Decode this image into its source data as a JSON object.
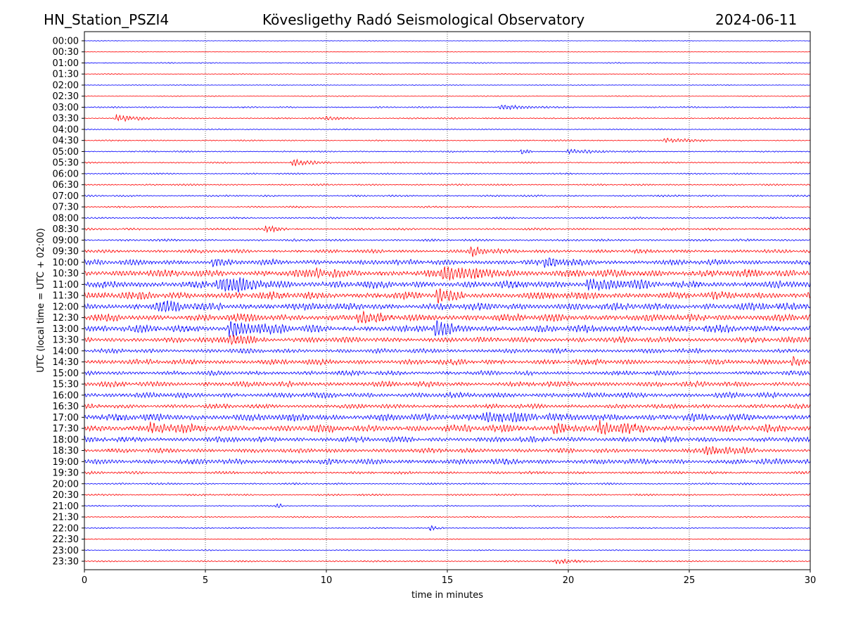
{
  "chart_data": {
    "type": "line",
    "title_left": "HN_Station_PSZI4",
    "title": "Kövesligethy Radó Seismological Observatory",
    "title_right": "2024-06-11",
    "xlabel": "time in minutes",
    "ylabel": "UTC (local time = UTC + 02:00)",
    "xlim": [
      0,
      30
    ],
    "xticks": [
      "0",
      "5",
      "10",
      "15",
      "20",
      "25",
      "30"
    ],
    "grid": "vertical dotted",
    "colors": [
      "#0000ff",
      "#ff0000"
    ],
    "rows": [
      "00:00",
      "00:30",
      "01:00",
      "01:30",
      "02:00",
      "02:30",
      "03:00",
      "03:30",
      "04:00",
      "04:30",
      "05:00",
      "05:30",
      "06:00",
      "06:30",
      "07:00",
      "07:30",
      "08:00",
      "08:30",
      "09:00",
      "09:30",
      "10:00",
      "10:30",
      "11:00",
      "11:30",
      "12:00",
      "12:30",
      "13:00",
      "13:30",
      "14:00",
      "14:30",
      "15:00",
      "15:30",
      "16:00",
      "16:30",
      "17:00",
      "17:30",
      "18:00",
      "18:30",
      "19:00",
      "19:30",
      "20:00",
      "20:30",
      "21:00",
      "21:30",
      "22:00",
      "22:30",
      "23:00",
      "23:30"
    ],
    "noise_amplitude": [
      0.3,
      0.3,
      0.6,
      0.5,
      0.4,
      0.5,
      0.8,
      0.8,
      0.6,
      0.7,
      0.8,
      0.8,
      0.8,
      0.9,
      1,
      0.9,
      1,
      1.2,
      1.2,
      2,
      3,
      4,
      4,
      4,
      4,
      4,
      4,
      3,
      2.5,
      3,
      2.5,
      3,
      3,
      2.5,
      4,
      4,
      3,
      2.5,
      3,
      1.5,
      1,
      1,
      0.7,
      0.7,
      0.7,
      0.6,
      0.6,
      0.8
    ],
    "events": [
      [
        6,
        17.2,
        3,
        1
      ],
      [
        7,
        1.3,
        5,
        0.8
      ],
      [
        7,
        10,
        3,
        0.6
      ],
      [
        9,
        24,
        3,
        1
      ],
      [
        10,
        18.1,
        6,
        0.2
      ],
      [
        10,
        20,
        3,
        1
      ],
      [
        11,
        8.6,
        5,
        0.8
      ],
      [
        17,
        7.5,
        4,
        0.5
      ],
      [
        19,
        16,
        6,
        0.6
      ],
      [
        20,
        5.3,
        6,
        0.4
      ],
      [
        20,
        19,
        5,
        1
      ],
      [
        21,
        9.6,
        6,
        0.5
      ],
      [
        21,
        14.8,
        7,
        1.5
      ],
      [
        22,
        5.5,
        9,
        1.5
      ],
      [
        22,
        20.8,
        7,
        1.3
      ],
      [
        23,
        14.6,
        7,
        0.6
      ],
      [
        24,
        3,
        5,
        1
      ],
      [
        25,
        11.3,
        6,
        0.6
      ],
      [
        26,
        6,
        10,
        1.2
      ],
      [
        26,
        14.5,
        10,
        0.5
      ],
      [
        27,
        6,
        7,
        0.8
      ],
      [
        29,
        29.3,
        7,
        0.4
      ],
      [
        34,
        16.5,
        6,
        1.5
      ],
      [
        35,
        2.7,
        6,
        1
      ],
      [
        35,
        21.3,
        8,
        1
      ],
      [
        35,
        19.4,
        7,
        0.5
      ],
      [
        37,
        25.7,
        6,
        1
      ],
      [
        44,
        14.3,
        4,
        0.3
      ],
      [
        42,
        8,
        6,
        0.1
      ],
      [
        47,
        19.5,
        3,
        1
      ]
    ]
  }
}
